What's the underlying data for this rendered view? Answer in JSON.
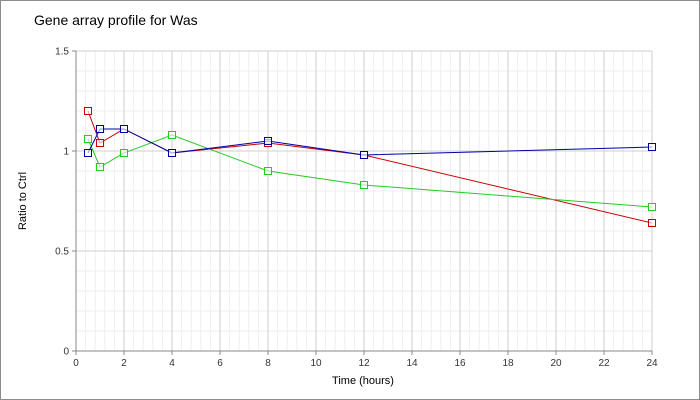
{
  "chart_data": {
    "type": "line",
    "title": "Gene array profile for Was",
    "xlabel": "Time (hours)",
    "ylabel": "Ratio to Ctrl",
    "xlim": [
      0,
      24
    ],
    "ylim": [
      0,
      1.5
    ],
    "xticks": [
      0,
      2,
      4,
      6,
      8,
      10,
      12,
      14,
      16,
      18,
      20,
      22,
      24
    ],
    "yticks": [
      0,
      0.5,
      1,
      1.5
    ],
    "ytick_labels": [
      "0",
      "0.5",
      "1",
      "1.5"
    ],
    "grid": true,
    "legend": "none",
    "series": [
      {
        "color": "#cc0000",
        "marker": "square",
        "x": [
          0.5,
          1,
          2,
          4,
          8,
          12,
          24
        ],
        "y": [
          1.2,
          1.04,
          1.11,
          0.99,
          1.04,
          0.98,
          0.64
        ]
      },
      {
        "color": "#22cc22",
        "marker": "square",
        "x": [
          0.5,
          1,
          2,
          4,
          8,
          12,
          24
        ],
        "y": [
          1.06,
          0.92,
          0.99,
          1.08,
          0.9,
          0.83,
          0.72
        ]
      },
      {
        "color": "#0000aa",
        "marker": "square",
        "x": [
          0.5,
          1,
          2,
          4,
          8,
          12,
          24
        ],
        "y": [
          0.99,
          1.11,
          1.11,
          0.99,
          1.05,
          0.98,
          1.02
        ]
      }
    ]
  }
}
